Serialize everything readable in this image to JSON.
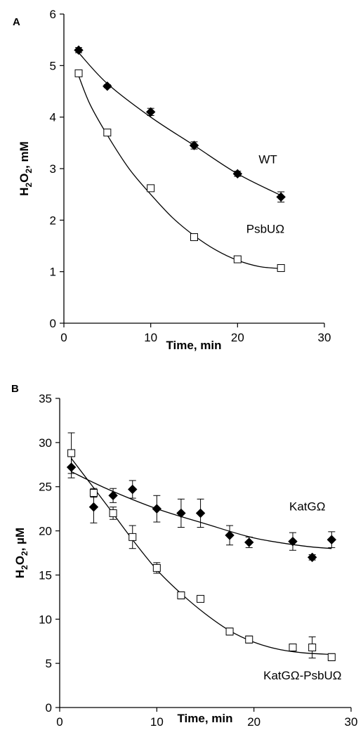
{
  "chart_data": [
    {
      "type": "scatter",
      "panel_label": "A",
      "xlabel": "Time, min",
      "ylabel_main": "H",
      "ylabel_sub1": "2",
      "ylabel_mid": "O",
      "ylabel_sub2": "2",
      "ylabel_unit": ", mM",
      "xlim": [
        0,
        30
      ],
      "ylim": [
        0,
        6
      ],
      "xticks": [
        "0",
        "10",
        "20",
        "30"
      ],
      "yticks": [
        "0",
        "1",
        "2",
        "3",
        "4",
        "5",
        "6"
      ],
      "grid": false,
      "series": [
        {
          "name": "WT",
          "marker": "diamond-filled",
          "points": [
            {
              "x": 1.7,
              "y": 5.3,
              "err": 0.05
            },
            {
              "x": 5,
              "y": 4.6,
              "err": 0.03
            },
            {
              "x": 10,
              "y": 4.1,
              "err": 0.07
            },
            {
              "x": 15,
              "y": 3.45,
              "err": 0.07
            },
            {
              "x": 20,
              "y": 2.9,
              "err": 0.05
            },
            {
              "x": 25,
              "y": 2.45,
              "err": 0.1
            }
          ],
          "fit": [
            [
              1.7,
              5.25
            ],
            [
              5,
              4.65
            ],
            [
              10,
              4.0
            ],
            [
              15,
              3.45
            ],
            [
              20,
              2.9
            ],
            [
              25,
              2.48
            ]
          ]
        },
        {
          "name": "PsbUΩ",
          "marker": "square-open",
          "points": [
            {
              "x": 1.7,
              "y": 4.85,
              "err": 0.03
            },
            {
              "x": 5,
              "y": 3.7,
              "err": 0.03
            },
            {
              "x": 10,
              "y": 2.62,
              "err": 0.03
            },
            {
              "x": 15,
              "y": 1.67,
              "err": 0.04
            },
            {
              "x": 20,
              "y": 1.24,
              "err": 0.03
            },
            {
              "x": 25,
              "y": 1.07,
              "err": 0.04
            }
          ],
          "fit": [
            [
              1.7,
              4.8
            ],
            [
              3,
              4.25
            ],
            [
              5,
              3.65
            ],
            [
              7.5,
              3.0
            ],
            [
              10,
              2.5
            ],
            [
              12.5,
              2.05
            ],
            [
              15,
              1.7
            ],
            [
              17.5,
              1.42
            ],
            [
              20,
              1.22
            ],
            [
              22.5,
              1.1
            ],
            [
              25,
              1.06
            ]
          ]
        }
      ],
      "annotations": [
        {
          "text": "WT",
          "x": 23.5,
          "y": 3.1
        },
        {
          "text": "PsbUΩ",
          "x": 23.2,
          "y": 1.75
        }
      ]
    },
    {
      "type": "scatter",
      "panel_label": "B",
      "xlabel": "Time, min",
      "ylabel_main": "H",
      "ylabel_sub1": "2",
      "ylabel_mid": "O",
      "ylabel_sub2": "2",
      "ylabel_unit": ", µM",
      "xlim": [
        0,
        30
      ],
      "ylim": [
        0,
        35
      ],
      "xticks": [
        "0",
        "10",
        "20",
        "30"
      ],
      "yticks": [
        "0",
        "5",
        "10",
        "15",
        "20",
        "25",
        "30",
        "35"
      ],
      "grid": false,
      "series": [
        {
          "name": "KatGΩ",
          "marker": "diamond-filled",
          "points": [
            {
              "x": 1.2,
              "y": 27.2,
              "err": 1.2
            },
            {
              "x": 3.5,
              "y": 22.7,
              "err": 1.8
            },
            {
              "x": 5.5,
              "y": 24.0,
              "err": 0.8
            },
            {
              "x": 7.5,
              "y": 24.7,
              "err": 1.0
            },
            {
              "x": 10,
              "y": 22.5,
              "err": 1.5
            },
            {
              "x": 12.5,
              "y": 22.0,
              "err": 1.6
            },
            {
              "x": 14.5,
              "y": 22.0,
              "err": 1.6
            },
            {
              "x": 17.5,
              "y": 19.5,
              "err": 1.1
            },
            {
              "x": 19.5,
              "y": 18.7,
              "err": 0.6
            },
            {
              "x": 24,
              "y": 18.8,
              "err": 1.0
            },
            {
              "x": 26,
              "y": 17.0,
              "err": 0.3
            },
            {
              "x": 28,
              "y": 19.0,
              "err": 0.9
            }
          ],
          "fit": [
            [
              1.2,
              26.7
            ],
            [
              5,
              24.7
            ],
            [
              10,
              22.5
            ],
            [
              15,
              20.8
            ],
            [
              20,
              19.2
            ],
            [
              25,
              18.3
            ],
            [
              28,
              18.0
            ]
          ]
        },
        {
          "name": "KatGΩ-PsbUΩ",
          "marker": "square-open",
          "points": [
            {
              "x": 1.2,
              "y": 28.8,
              "err": 2.3
            },
            {
              "x": 3.5,
              "y": 24.3,
              "err": 0.5
            },
            {
              "x": 5.5,
              "y": 22.0,
              "err": 0.7
            },
            {
              "x": 7.5,
              "y": 19.3,
              "err": 1.3
            },
            {
              "x": 10,
              "y": 15.8,
              "err": 0.6
            },
            {
              "x": 12.5,
              "y": 12.7,
              "err": 0.4
            },
            {
              "x": 14.5,
              "y": 12.3,
              "err": 0.3
            },
            {
              "x": 17.5,
              "y": 8.6,
              "err": 0.4
            },
            {
              "x": 19.5,
              "y": 7.7,
              "err": 0.4
            },
            {
              "x": 24,
              "y": 6.8,
              "err": 0.4
            },
            {
              "x": 26,
              "y": 6.8,
              "err": 1.2
            },
            {
              "x": 28,
              "y": 5.7,
              "err": 0.4
            }
          ],
          "fit": [
            [
              1.2,
              28.2
            ],
            [
              3,
              25.6
            ],
            [
              5,
              22.7
            ],
            [
              7.5,
              19.0
            ],
            [
              10,
              15.6
            ],
            [
              12.5,
              12.9
            ],
            [
              15,
              10.6
            ],
            [
              17.5,
              8.7
            ],
            [
              20,
              7.4
            ],
            [
              22.5,
              6.6
            ],
            [
              25,
              6.2
            ],
            [
              28,
              6.0
            ]
          ]
        }
      ],
      "annotations": [
        {
          "text": "KatGΩ",
          "x": 25.5,
          "y": 22.3
        },
        {
          "text": "KatGΩ-PsbUΩ",
          "x": 25.0,
          "y": 3.2
        }
      ]
    }
  ]
}
